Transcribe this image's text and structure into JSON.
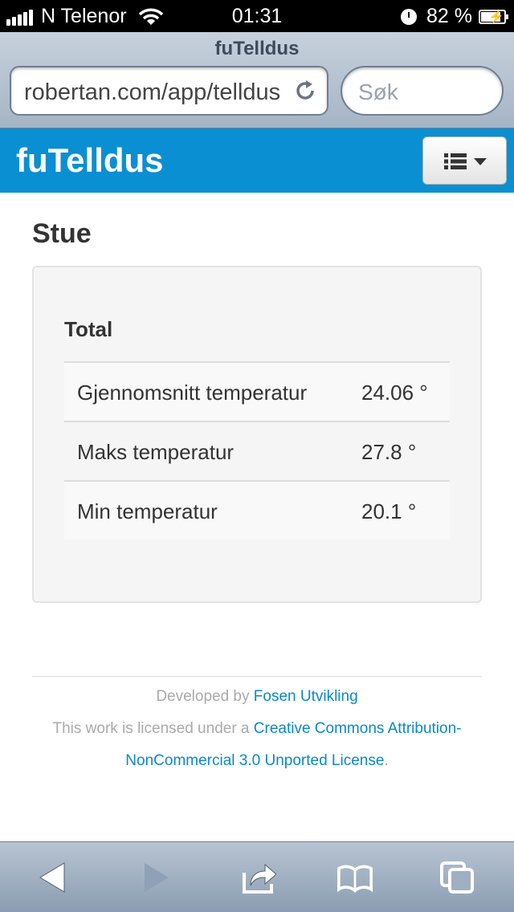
{
  "status_bar": {
    "carrier": "N Telenor",
    "time": "01:31",
    "battery": "82 %",
    "icons": [
      "signal-icon",
      "wifi-icon",
      "alarm-clock-icon",
      "battery-icon"
    ]
  },
  "browser": {
    "page_title": "fuTelldus",
    "url": "robertan.com/app/telldus",
    "search_placeholder": "Søk"
  },
  "navbar": {
    "brand": "fuTelldus",
    "menu_icon": "list-icon"
  },
  "main": {
    "room_title": "Stue",
    "section_title": "Total",
    "stats": [
      {
        "label": "Gjennomsnitt temperatur",
        "value": "24.06 °"
      },
      {
        "label": "Maks temperatur",
        "value": "27.8 °"
      },
      {
        "label": "Min temperatur",
        "value": "20.1 °"
      }
    ]
  },
  "footer": {
    "developed_prefix": "Developed by ",
    "developer_link": "Fosen Utvikling",
    "license_prefix": "This work is licensed under a ",
    "license_link": "Creative Commons Attribution-NonCommercial 3.0 Unported License",
    "license_suffix": "."
  },
  "toolbar": {
    "icons": [
      "back-icon",
      "forward-icon",
      "share-icon",
      "bookmarks-icon",
      "tabs-icon"
    ]
  },
  "colors": {
    "accent": "#0a8fd2",
    "link": "#0a88c8"
  }
}
